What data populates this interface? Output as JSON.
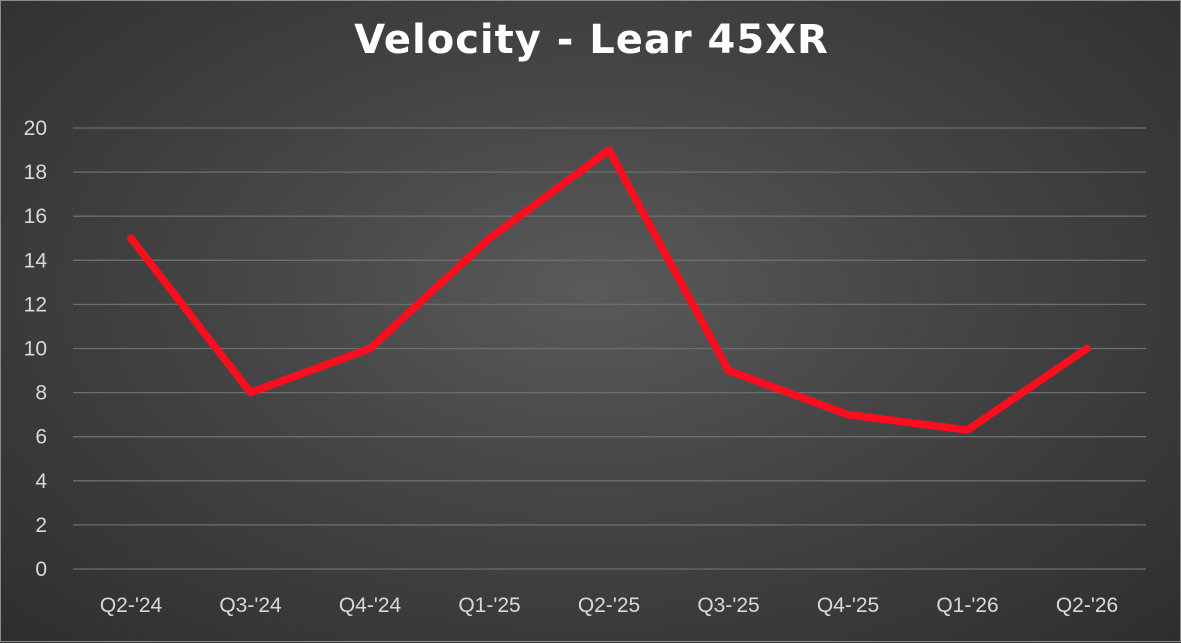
{
  "chart_data": {
    "type": "line",
    "title": "Velocity - Lear 45XR",
    "xlabel": "",
    "ylabel": "",
    "categories": [
      "Q2-'24",
      "Q3-'24",
      "Q4-'24",
      "Q1-'25",
      "Q2-'25",
      "Q3-'25",
      "Q4-'25",
      "Q1-'26",
      "Q2-'26"
    ],
    "series": [
      {
        "values": [
          15,
          8,
          10,
          15,
          19,
          9,
          7,
          6.3,
          10
        ],
        "color": "#ff0d1f"
      }
    ],
    "ylim": [
      0,
      20
    ],
    "yticks": [
      0,
      2,
      4,
      6,
      8,
      10,
      12,
      14,
      16,
      18,
      20
    ],
    "grid": true,
    "legend": "none"
  },
  "colors": {
    "background": "#474747",
    "gridline": "#6e6e6e",
    "text": "#d9d9d9",
    "title": "#ffffff",
    "line": "#ff0d1f"
  }
}
